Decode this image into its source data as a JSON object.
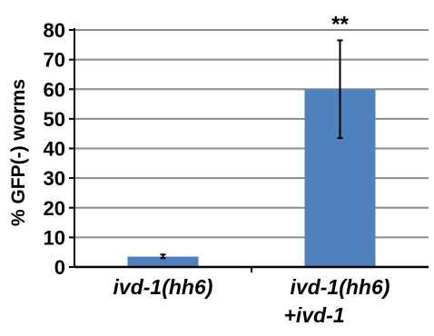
{
  "chart_data": {
    "type": "bar",
    "title": "",
    "xlabel": "",
    "ylabel": "% GFP(-) worms",
    "ylim": [
      0,
      80
    ],
    "yticks": [
      0,
      10,
      20,
      30,
      40,
      50,
      60,
      70,
      80
    ],
    "grid": true,
    "legend": "none",
    "categories": [
      {
        "line1": "ivd-1(hh6)",
        "line2": ""
      },
      {
        "line1": "ivd-1(hh6)",
        "line2": "+ivd-1"
      }
    ],
    "series": [
      {
        "values": [
          3.5,
          60
        ],
        "errors_low": [
          0.5,
          16.5
        ],
        "errors_high": [
          0.7,
          16.5
        ],
        "annotations": [
          "",
          "**"
        ]
      }
    ],
    "colors": {
      "bar": "#4F81BD",
      "grid": "#8C8C8C",
      "axis": "#000000",
      "text": "#000000"
    }
  }
}
